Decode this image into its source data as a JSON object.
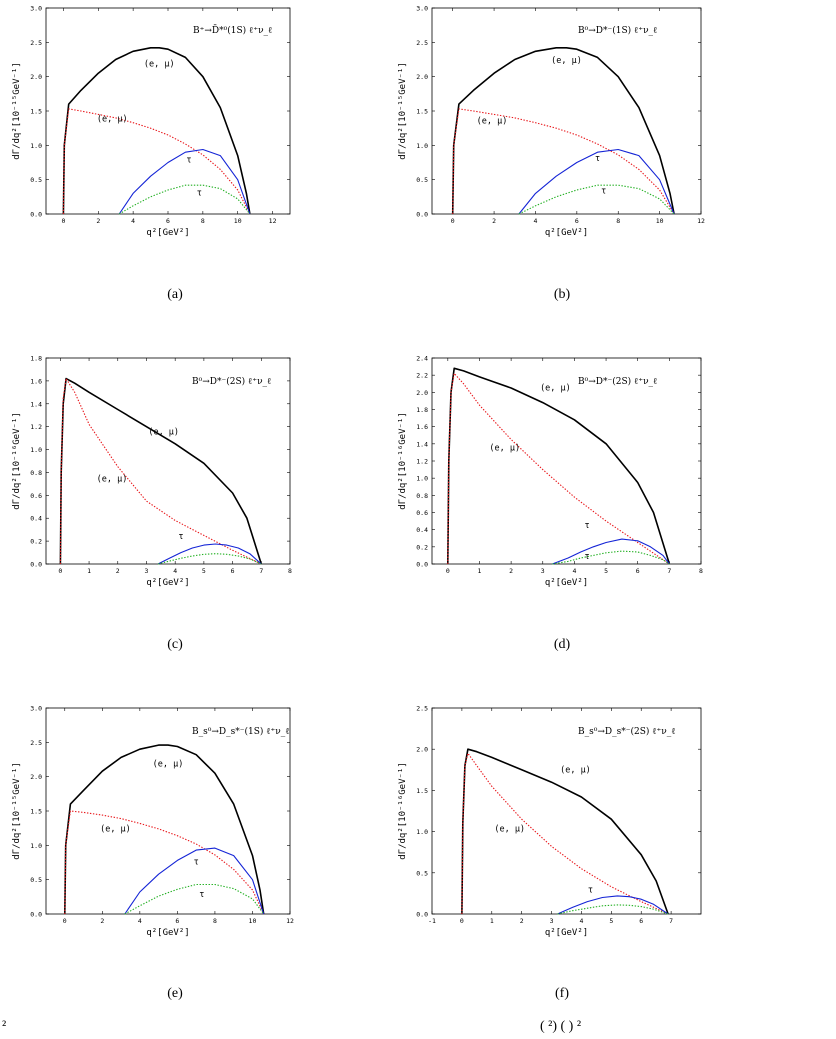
{
  "caption": "²",
  "caption_right": "(  ²)  (  )  ²",
  "chart_data": [
    {
      "type": "line",
      "panel_label": "(a)",
      "process": "B⁺→D̄*⁰(1S) ℓ⁺ν_ℓ",
      "xlabel": "q²[GeV²]",
      "ylabel": "dΓ/dq²[10⁻¹⁵GeV⁻¹]",
      "xlim": [
        -1,
        13
      ],
      "ylim": [
        0,
        3.0
      ],
      "xticks": [
        0,
        2,
        4,
        6,
        8,
        10,
        12
      ],
      "yticks": [
        0.0,
        0.5,
        1.0,
        1.5,
        2.0,
        2.5,
        3.0
      ],
      "colors": {
        "total_light": "#000000",
        "long_light": "#e8161a",
        "total_tau": "#1424d6",
        "long_tau": "#22b022"
      },
      "series": [
        {
          "label": "(e, μ)",
          "style": "solid",
          "color": "#000000",
          "x": [
            0.0,
            0.05,
            0.3,
            1,
            2,
            3,
            4,
            5,
            5.5,
            6,
            7,
            8,
            9,
            10,
            10.5,
            10.7
          ],
          "y": [
            0.0,
            1.0,
            1.6,
            1.8,
            2.05,
            2.25,
            2.37,
            2.42,
            2.42,
            2.4,
            2.28,
            2.0,
            1.55,
            0.85,
            0.3,
            0.0
          ],
          "label_pos": [
            5.5,
            2.15
          ]
        },
        {
          "label": "(e, μ)",
          "style": "dotted",
          "color": "#e8161a",
          "x": [
            0.0,
            0.05,
            0.3,
            1,
            2,
            3,
            4,
            5,
            6,
            7,
            8,
            9,
            10,
            10.7
          ],
          "y": [
            0.0,
            1.0,
            1.53,
            1.5,
            1.45,
            1.4,
            1.33,
            1.25,
            1.15,
            1.02,
            0.86,
            0.65,
            0.35,
            0.0
          ],
          "label_pos": [
            2.8,
            1.35
          ]
        },
        {
          "label": "τ",
          "style": "solid",
          "color": "#1424d6",
          "x": [
            3.2,
            4,
            5,
            6,
            7,
            8,
            9,
            10,
            10.7
          ],
          "y": [
            0.0,
            0.3,
            0.55,
            0.75,
            0.9,
            0.94,
            0.85,
            0.5,
            0.0
          ],
          "label_pos": [
            7.2,
            0.75
          ]
        },
        {
          "label": "τ",
          "style": "dotted",
          "color": "#22b022",
          "x": [
            3.2,
            4,
            5,
            6,
            7,
            8,
            9,
            10,
            10.7
          ],
          "y": [
            0.0,
            0.12,
            0.25,
            0.35,
            0.42,
            0.42,
            0.37,
            0.22,
            0.0
          ],
          "label_pos": [
            7.8,
            0.27
          ]
        }
      ]
    },
    {
      "type": "line",
      "panel_label": "(b)",
      "process": "B⁰→D*⁻(1S) ℓ⁺ν_ℓ",
      "xlabel": "q²[GeV²]",
      "ylabel": "dΓ/dq²[10⁻¹⁵GeV⁻¹]",
      "xlim": [
        -1,
        12
      ],
      "ylim": [
        0,
        3.0
      ],
      "xticks": [
        0,
        2,
        4,
        6,
        8,
        10,
        12
      ],
      "yticks": [
        0.0,
        0.5,
        1.0,
        1.5,
        2.0,
        2.5,
        3.0
      ],
      "colors": {
        "total_light": "#000000",
        "long_light": "#e8161a",
        "total_tau": "#1424d6",
        "long_tau": "#22b022"
      },
      "series": [
        {
          "label": "(e, μ)",
          "style": "solid",
          "color": "#000000",
          "x": [
            0.0,
            0.05,
            0.3,
            1,
            2,
            3,
            4,
            5,
            5.5,
            6,
            7,
            8,
            9,
            10,
            10.5,
            10.7
          ],
          "y": [
            0.0,
            1.0,
            1.6,
            1.8,
            2.05,
            2.25,
            2.37,
            2.42,
            2.42,
            2.4,
            2.28,
            2.0,
            1.55,
            0.85,
            0.3,
            0.0
          ],
          "label_pos": [
            5.5,
            2.2
          ]
        },
        {
          "label": "(e, μ)",
          "style": "dotted",
          "color": "#e8161a",
          "x": [
            0.0,
            0.05,
            0.3,
            1,
            2,
            3,
            4,
            5,
            6,
            7,
            8,
            9,
            10,
            10.7
          ],
          "y": [
            0.0,
            1.0,
            1.53,
            1.5,
            1.45,
            1.4,
            1.33,
            1.25,
            1.15,
            1.02,
            0.86,
            0.65,
            0.35,
            0.0
          ],
          "label_pos": [
            1.9,
            1.32
          ]
        },
        {
          "label": "τ",
          "style": "solid",
          "color": "#1424d6",
          "x": [
            3.2,
            4,
            5,
            6,
            7,
            8,
            9,
            10,
            10.7
          ],
          "y": [
            0.0,
            0.3,
            0.55,
            0.75,
            0.9,
            0.94,
            0.85,
            0.5,
            0.0
          ],
          "label_pos": [
            7.0,
            0.77
          ]
        },
        {
          "label": "τ",
          "style": "dotted",
          "color": "#22b022",
          "x": [
            3.2,
            4,
            5,
            6,
            7,
            8,
            9,
            10,
            10.7
          ],
          "y": [
            0.0,
            0.12,
            0.25,
            0.35,
            0.42,
            0.42,
            0.37,
            0.22,
            0.0
          ],
          "label_pos": [
            7.3,
            0.3
          ]
        }
      ]
    },
    {
      "type": "line",
      "panel_label": "(c)",
      "process": "B⁰→D*⁻(2S) ℓ⁺ν_ℓ",
      "xlabel": "q²[GeV²]",
      "ylabel": "dΓ/dq²[10⁻¹⁶GeV⁻¹]",
      "xlim": [
        -0.5,
        8
      ],
      "ylim": [
        0,
        1.8
      ],
      "xticks": [
        0,
        1,
        2,
        3,
        4,
        5,
        6,
        7,
        8
      ],
      "yticks": [
        0.0,
        0.2,
        0.4,
        0.6,
        0.8,
        1.0,
        1.2,
        1.4,
        1.6,
        1.8
      ],
      "colors": {
        "total_light": "#000000",
        "long_light": "#e8161a",
        "total_tau": "#1424d6",
        "long_tau": "#22b022"
      },
      "series": [
        {
          "label": "(e, μ)",
          "style": "solid",
          "color": "#000000",
          "x": [
            0.0,
            0.03,
            0.1,
            0.2,
            0.5,
            1,
            2,
            3,
            4,
            5,
            6,
            6.5,
            7.0
          ],
          "y": [
            0.0,
            0.8,
            1.4,
            1.62,
            1.58,
            1.5,
            1.35,
            1.2,
            1.05,
            0.88,
            0.62,
            0.4,
            0.0
          ],
          "label_pos": [
            3.6,
            1.13
          ]
        },
        {
          "label": "(e, μ)",
          "style": "dotted",
          "color": "#e8161a",
          "x": [
            0.0,
            0.03,
            0.1,
            0.2,
            0.5,
            1,
            2,
            3,
            4,
            5,
            6,
            7.0
          ],
          "y": [
            0.0,
            0.8,
            1.45,
            1.62,
            1.5,
            1.22,
            0.85,
            0.55,
            0.38,
            0.25,
            0.12,
            0.0
          ],
          "label_pos": [
            1.8,
            0.72
          ]
        },
        {
          "label": "τ",
          "style": "solid",
          "color": "#1424d6",
          "x": [
            3.4,
            3.8,
            4.2,
            4.6,
            5.0,
            5.4,
            5.8,
            6.2,
            6.6,
            7.0
          ],
          "y": [
            0.0,
            0.05,
            0.1,
            0.14,
            0.165,
            0.175,
            0.165,
            0.14,
            0.09,
            0.0
          ],
          "label_pos": [
            4.2,
            0.22
          ]
        },
        {
          "label": "τ",
          "style": "dotted",
          "color": "#22b022",
          "x": [
            3.4,
            3.8,
            4.2,
            4.6,
            5.0,
            5.4,
            5.8,
            6.2,
            6.6,
            7.0
          ],
          "y": [
            0.0,
            0.025,
            0.05,
            0.07,
            0.085,
            0.09,
            0.085,
            0.07,
            0.045,
            0.0
          ],
          "label_pos": null
        }
      ]
    },
    {
      "type": "line",
      "panel_label": "(d)",
      "process": "B⁰→D*⁻(2S) ℓ⁺ν_ℓ",
      "xlabel": "q²[GeV²]",
      "ylabel": "dΓ/dq²[10⁻¹⁶GeV⁻¹]",
      "xlim": [
        -0.5,
        8
      ],
      "ylim": [
        0,
        2.4
      ],
      "xticks": [
        0,
        1,
        2,
        3,
        4,
        5,
        6,
        7,
        8
      ],
      "yticks": [
        0.0,
        0.2,
        0.4,
        0.6,
        0.8,
        1.0,
        1.2,
        1.4,
        1.6,
        1.8,
        2.0,
        2.2,
        2.4
      ],
      "colors": {
        "total_light": "#000000",
        "long_light": "#e8161a",
        "total_tau": "#1424d6",
        "long_tau": "#22b022"
      },
      "series": [
        {
          "label": "(e, μ)",
          "style": "solid",
          "color": "#000000",
          "x": [
            0.0,
            0.03,
            0.1,
            0.2,
            0.5,
            1,
            2,
            3,
            4,
            5,
            6,
            6.5,
            7.0
          ],
          "y": [
            0.0,
            1.2,
            2.0,
            2.28,
            2.25,
            2.18,
            2.05,
            1.88,
            1.68,
            1.4,
            0.95,
            0.6,
            0.0
          ],
          "label_pos": [
            3.4,
            2.02
          ]
        },
        {
          "label": "(e, μ)",
          "style": "dotted",
          "color": "#e8161a",
          "x": [
            0.0,
            0.03,
            0.1,
            0.2,
            0.5,
            1,
            2,
            3,
            4,
            5,
            6,
            7.0
          ],
          "y": [
            0.0,
            1.2,
            2.0,
            2.22,
            2.1,
            1.85,
            1.45,
            1.1,
            0.78,
            0.5,
            0.25,
            0.0
          ],
          "label_pos": [
            1.8,
            1.32
          ]
        },
        {
          "label": "τ",
          "style": "solid",
          "color": "#1424d6",
          "x": [
            3.3,
            3.8,
            4.2,
            4.6,
            5.0,
            5.5,
            6.0,
            6.4,
            6.8,
            7.0
          ],
          "y": [
            0.0,
            0.07,
            0.14,
            0.2,
            0.25,
            0.29,
            0.27,
            0.2,
            0.1,
            0.0
          ],
          "label_pos": [
            4.4,
            0.42
          ]
        },
        {
          "label": "τ",
          "style": "dotted",
          "color": "#22b022",
          "x": [
            3.3,
            3.8,
            4.2,
            4.6,
            5.0,
            5.5,
            6.0,
            6.4,
            6.8,
            7.0
          ],
          "y": [
            0.0,
            0.03,
            0.07,
            0.1,
            0.13,
            0.15,
            0.14,
            0.1,
            0.05,
            0.0
          ],
          "label_pos": [
            4.4,
            0.06
          ]
        }
      ]
    },
    {
      "type": "line",
      "panel_label": "(e)",
      "process": "B_s⁰→D_s*⁻(1S) ℓ⁺ν_ℓ",
      "xlabel": "q²[GeV²]",
      "ylabel": "dΓ/dq²[10⁻¹⁵GeV⁻¹]",
      "xlim": [
        -1,
        12
      ],
      "ylim": [
        0,
        3.0
      ],
      "xticks": [
        0,
        2,
        4,
        6,
        8,
        10,
        12
      ],
      "yticks": [
        0.0,
        0.5,
        1.0,
        1.5,
        2.0,
        2.5,
        3.0
      ],
      "colors": {
        "total_light": "#000000",
        "long_light": "#e8161a",
        "total_tau": "#1424d6",
        "long_tau": "#22b022"
      },
      "series": [
        {
          "label": "(e, μ)",
          "style": "solid",
          "color": "#000000",
          "x": [
            0.0,
            0.05,
            0.3,
            1,
            2,
            3,
            4,
            5,
            5.5,
            6,
            7,
            8,
            9,
            10,
            10.4,
            10.6
          ],
          "y": [
            0.0,
            1.0,
            1.6,
            1.8,
            2.08,
            2.28,
            2.4,
            2.46,
            2.46,
            2.44,
            2.32,
            2.05,
            1.6,
            0.85,
            0.35,
            0.0
          ],
          "label_pos": [
            5.5,
            2.15
          ]
        },
        {
          "label": "(e, μ)",
          "style": "dotted",
          "color": "#e8161a",
          "x": [
            0.0,
            0.05,
            0.3,
            1,
            2,
            3,
            4,
            5,
            6,
            7,
            8,
            9,
            10,
            10.6
          ],
          "y": [
            0.0,
            1.0,
            1.5,
            1.48,
            1.44,
            1.39,
            1.32,
            1.24,
            1.14,
            1.02,
            0.86,
            0.65,
            0.35,
            0.0
          ],
          "label_pos": [
            2.7,
            1.2
          ]
        },
        {
          "label": "τ",
          "style": "solid",
          "color": "#1424d6",
          "x": [
            3.2,
            4,
            5,
            6,
            7,
            8,
            9,
            10,
            10.6
          ],
          "y": [
            0.0,
            0.32,
            0.58,
            0.78,
            0.93,
            0.96,
            0.85,
            0.5,
            0.0
          ],
          "label_pos": [
            7.0,
            0.72
          ]
        },
        {
          "label": "τ",
          "style": "dotted",
          "color": "#22b022",
          "x": [
            3.2,
            4,
            5,
            6,
            7,
            8,
            9,
            10,
            10.6
          ],
          "y": [
            0.0,
            0.12,
            0.26,
            0.36,
            0.43,
            0.43,
            0.37,
            0.22,
            0.0
          ],
          "label_pos": [
            7.3,
            0.25
          ]
        }
      ]
    },
    {
      "type": "line",
      "panel_label": "(f)",
      "process": "B_s⁰→D_s*⁻(2S) ℓ⁺ν_ℓ",
      "xlabel": "q²[GeV²]",
      "ylabel": "dΓ/dq²[10⁻¹⁶GeV⁻¹]",
      "xlim": [
        -1,
        8
      ],
      "ylim": [
        0,
        2.5
      ],
      "xticks": [
        -1,
        0,
        1,
        2,
        3,
        4,
        5,
        6,
        7
      ],
      "yticks": [
        0.0,
        0.5,
        1.0,
        1.5,
        2.0,
        2.5
      ],
      "colors": {
        "total_light": "#000000",
        "long_light": "#e8161a",
        "total_tau": "#1424d6",
        "long_tau": "#22b022"
      },
      "series": [
        {
          "label": "(e, μ)",
          "style": "solid",
          "color": "#000000",
          "x": [
            0.0,
            0.03,
            0.1,
            0.2,
            0.5,
            1,
            2,
            3,
            4,
            5,
            6,
            6.5,
            6.9
          ],
          "y": [
            0.0,
            1.1,
            1.8,
            2.0,
            1.97,
            1.9,
            1.75,
            1.6,
            1.42,
            1.15,
            0.72,
            0.4,
            0.0
          ],
          "label_pos": [
            3.8,
            1.72
          ]
        },
        {
          "label": "(e, μ)",
          "style": "dotted",
          "color": "#e8161a",
          "x": [
            0.0,
            0.03,
            0.1,
            0.2,
            0.5,
            1,
            2,
            3,
            4,
            5,
            6,
            6.9
          ],
          "y": [
            0.0,
            1.1,
            1.8,
            1.95,
            1.8,
            1.55,
            1.15,
            0.82,
            0.55,
            0.33,
            0.15,
            0.0
          ],
          "label_pos": [
            1.6,
            1.0
          ]
        },
        {
          "label": "τ",
          "style": "solid",
          "color": "#1424d6",
          "x": [
            3.2,
            3.7,
            4.2,
            4.7,
            5.2,
            5.6,
            6.0,
            6.4,
            6.9
          ],
          "y": [
            0.0,
            0.08,
            0.15,
            0.2,
            0.22,
            0.21,
            0.18,
            0.12,
            0.0
          ],
          "label_pos": [
            4.3,
            0.26
          ]
        },
        {
          "label": "τ",
          "style": "dotted",
          "color": "#22b022",
          "x": [
            3.2,
            3.7,
            4.2,
            4.7,
            5.2,
            5.6,
            6.0,
            6.4,
            6.9
          ],
          "y": [
            0.0,
            0.04,
            0.07,
            0.1,
            0.11,
            0.105,
            0.09,
            0.06,
            0.0
          ],
          "label_pos": null
        }
      ]
    }
  ]
}
